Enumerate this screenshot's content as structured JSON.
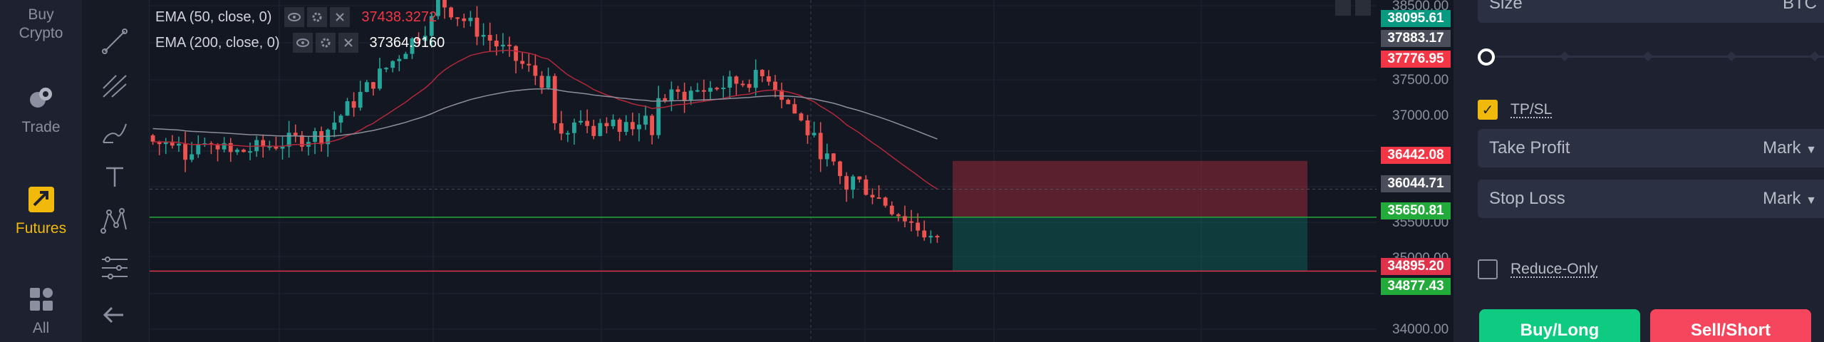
{
  "nav": {
    "items": [
      {
        "label": "Buy Crypto",
        "line1": "Buy",
        "line2": "Crypto"
      },
      {
        "label": "Trade"
      },
      {
        "label": "Futures",
        "active": true
      },
      {
        "label": "All"
      }
    ]
  },
  "legend": {
    "ema50": {
      "name": "EMA (50, close, 0)",
      "value": "37438.3272",
      "color": "#f23645"
    },
    "ema200": {
      "name": "EMA (200, close, 0)",
      "value": "37364.9160",
      "color": "#ffffff"
    }
  },
  "price_axis": {
    "labels": [
      "38500.00",
      "37500.00",
      "37000.00",
      "35500.00",
      "35000.00",
      "34000.00"
    ],
    "tags": [
      {
        "text": "38095.61",
        "color": "#089981"
      },
      {
        "text": "37883.17",
        "color": "#4a4e5a"
      },
      {
        "text": "37776.95",
        "color": "#f23645"
      },
      {
        "text": "36442.08",
        "color": "#f23645"
      },
      {
        "text": "36044.71",
        "color": "#4a4e5a"
      },
      {
        "text": "35650.81",
        "color": "#22ab3a"
      },
      {
        "text": "34895.20",
        "color": "#e0324a"
      },
      {
        "text": "34877.43",
        "color": "#22ab3a"
      }
    ]
  },
  "chart_data": {
    "type": "candlestick",
    "ylim": [
      33900,
      38700
    ],
    "position_box": {
      "take_profit_top": 36442.08,
      "entry": 35650.81,
      "stop": 34895.2
    },
    "candles_count": 122
  },
  "panel": {
    "size_label": "Size",
    "size_unit": "BTC",
    "tpsl_label": "TP/SL",
    "take_profit": {
      "label": "Take Profit",
      "mode": "Mark"
    },
    "stop_loss": {
      "label": "Stop Loss",
      "mode": "Mark"
    },
    "reduce_only_label": "Reduce-Only",
    "buy_label": "Buy/Long",
    "sell_label": "Sell/Short"
  },
  "colors": {
    "up": "#26a69a",
    "down": "#ef5350",
    "accent": "#f0b90b",
    "buy": "#0ecb81",
    "sell": "#f6465d"
  }
}
